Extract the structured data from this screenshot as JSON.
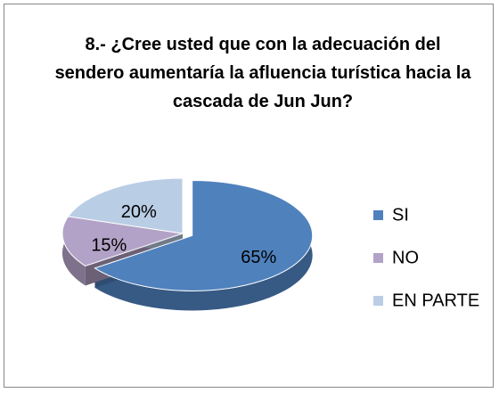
{
  "chart_data": {
    "type": "pie",
    "title": "8.- ¿Cree usted que con la adecuación del sendero aumentaría la afluencia turística hacia la cascada de Jun Jun?",
    "categories": [
      "SI",
      "NO",
      "EN PARTE"
    ],
    "values": [
      65,
      15,
      20
    ],
    "value_labels": [
      "65%",
      "15%",
      "20%"
    ],
    "colors": [
      "#4f81bd",
      "#b3a2c7",
      "#b9cde5"
    ],
    "legend": "right"
  }
}
